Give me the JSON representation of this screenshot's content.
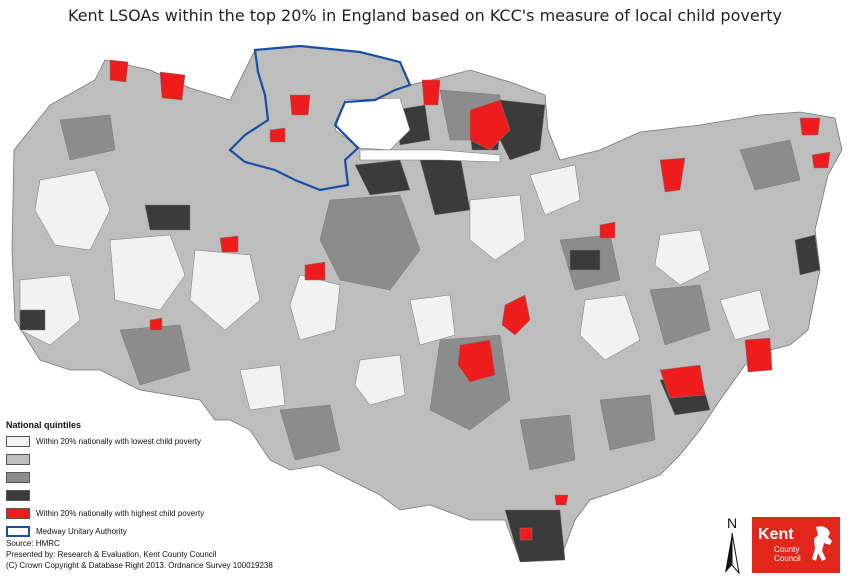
{
  "title": "Kent LSOAs within the top 20% in England based on KCC's measure of local child poverty",
  "legend": {
    "heading": "National quintiles",
    "items": [
      {
        "label": "Within 20% nationally with lowest child poverty",
        "color": "#f2f2f2"
      },
      {
        "label": "",
        "color": "#bdbdbd"
      },
      {
        "label": "",
        "color": "#8c8c8c"
      },
      {
        "label": "",
        "color": "#3b3b3b"
      },
      {
        "label": "Within 20% nationally with highest child poverty",
        "color": "#ee1c1c"
      },
      {
        "label": "Medway Unitary Authority",
        "color": "#1a4fa3",
        "style": "outline"
      }
    ]
  },
  "credits": {
    "source": "Source: HMRC",
    "presented_by": "Presented by: Research & Evaluation, Kent County Council",
    "copyright": "(C) Crown Copyright & Database Right 2013. Ordnance Survey 100019238"
  },
  "north_arrow": {
    "letter": "N"
  },
  "logo": {
    "name": "Kent",
    "sub_line1": "County",
    "sub_line2": "Council",
    "icon": "white-horse-icon",
    "color": "#e2261c"
  },
  "medway_outline_color": "#1a4fa3"
}
